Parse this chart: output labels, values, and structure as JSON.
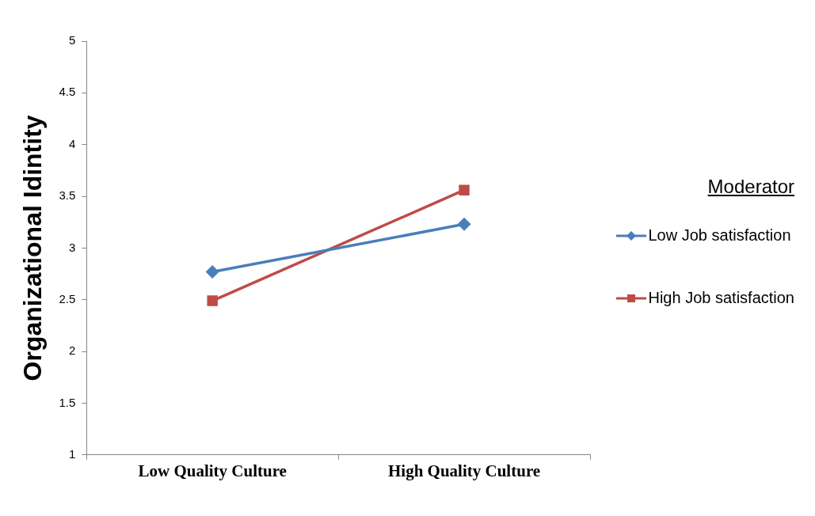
{
  "chart_data": {
    "type": "line",
    "ylabel": "Organizational Idintity",
    "legend_title": "Moderator",
    "legend": "right",
    "grid": false,
    "categories": [
      "Low Quality Culture",
      "High Quality Culture"
    ],
    "series": [
      {
        "name": "Low Job satisfaction",
        "color": "#4a7ebb",
        "marker": "diamond",
        "values": [
          2.77,
          3.23
        ]
      },
      {
        "name": "High Job satisfaction",
        "color": "#be4b48",
        "marker": "square",
        "values": [
          2.49,
          3.56
        ]
      }
    ],
    "ylim": [
      1,
      5
    ],
    "yticks": [
      1,
      1.5,
      2,
      2.5,
      3,
      3.5,
      4,
      4.5,
      5
    ]
  }
}
